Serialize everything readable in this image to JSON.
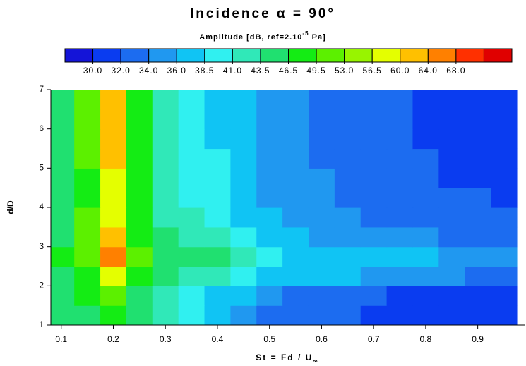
{
  "chart_data": {
    "type": "heatmap",
    "title": "Incidence α = 90°",
    "colorbar_label": "Amplitude [dB, ref=2.10",
    "colorbar_label_sup": "-5",
    "colorbar_label_end": " Pa]",
    "xlabel": "St = Fd / U",
    "xlabel_sub": "∞",
    "ylabel": "d/D",
    "xlim": [
      0.08,
      0.99
    ],
    "ylim": [
      1,
      7
    ],
    "xticks": [
      0.1,
      0.2,
      0.3,
      0.4,
      0.5,
      0.6,
      0.7,
      0.8,
      0.9
    ],
    "yticks": [
      1,
      2,
      3,
      4,
      5,
      6,
      7
    ],
    "levels": [
      {
        "value": 30,
        "label": "30.0"
      },
      {
        "value": 32,
        "label": "32.0"
      },
      {
        "value": 34,
        "label": "34.0"
      },
      {
        "value": 36,
        "label": "36.0"
      },
      38.5,
      {
        "value": 41,
        "label": "41.0"
      },
      43.5,
      46.5,
      49.5,
      {
        "value": 53,
        "label": "53.0"
      },
      56.5,
      {
        "value": 60,
        "label": "60.0"
      },
      {
        "value": 64,
        "label": "64.0"
      },
      {
        "value": 68,
        "label": "68.0"
      }
    ],
    "colors": [
      "#1414d8",
      "#0a3cf0",
      "#1c6cf0",
      "#2098f0",
      "#10c4f4",
      "#30f0f0",
      "#30e8b8",
      "#20e070",
      "#14ec14",
      "#5cf000",
      "#98f400",
      "#e4ff00",
      "#ffc000",
      "#ff8000",
      "#ff3000",
      "#e00000"
    ],
    "x": [
      0.1,
      0.15,
      0.2,
      0.25,
      0.3,
      0.35,
      0.4,
      0.45,
      0.5,
      0.55,
      0.6,
      0.65,
      0.7,
      0.75,
      0.8,
      0.85,
      0.9,
      0.95
    ],
    "y": [
      1.25,
      1.75,
      2.25,
      2.75,
      3.25,
      3.75,
      4.25,
      4.75,
      5.25,
      5.75,
      6.25,
      6.75
    ],
    "z": [
      [
        45,
        46,
        48,
        44,
        42,
        39,
        36,
        34,
        33,
        33,
        32,
        32,
        31,
        31,
        30,
        31,
        30,
        30
      ],
      [
        46,
        47,
        50,
        46,
        43,
        40,
        38,
        36,
        34,
        33,
        33,
        32,
        32,
        31,
        31,
        31,
        30,
        30
      ],
      [
        46,
        49,
        57,
        48,
        44,
        43,
        42,
        40,
        38,
        37,
        36,
        36,
        35,
        35,
        34,
        34,
        33,
        33
      ],
      [
        47,
        52,
        64,
        50,
        45,
        44,
        45,
        41,
        39,
        38,
        37,
        37,
        37,
        36,
        36,
        35,
        35,
        35
      ],
      [
        46,
        51,
        60,
        49,
        44,
        42,
        42,
        39,
        37,
        36,
        35,
        35,
        34,
        34,
        34,
        33,
        33,
        33
      ],
      [
        45,
        50,
        58,
        48,
        43,
        41,
        40,
        38,
        36,
        35,
        34,
        34,
        33,
        33,
        32,
        32,
        32,
        32
      ],
      [
        45,
        49,
        58,
        48,
        43,
        40,
        39,
        38,
        35,
        34,
        34,
        33,
        33,
        33,
        32,
        32,
        32,
        31
      ],
      [
        45,
        49,
        59,
        47,
        42,
        40,
        39,
        37,
        35,
        34,
        34,
        33,
        33,
        32,
        32,
        31,
        31,
        31
      ],
      [
        45,
        50,
        60,
        47,
        42,
        40,
        39,
        37,
        35,
        34,
        33,
        33,
        33,
        32,
        32,
        31,
        31,
        31
      ],
      [
        44,
        50,
        61,
        47,
        42,
        39,
        38,
        37,
        35,
        34,
        33,
        33,
        32,
        32,
        31,
        31,
        31,
        30
      ],
      [
        44,
        50,
        62,
        47,
        42,
        39,
        38,
        37,
        35,
        34,
        33,
        33,
        32,
        32,
        31,
        31,
        30,
        30
      ],
      [
        44,
        51,
        63,
        48,
        42,
        39,
        38,
        37,
        35,
        34,
        33,
        33,
        32,
        32,
        31,
        31,
        30,
        30
      ]
    ]
  }
}
